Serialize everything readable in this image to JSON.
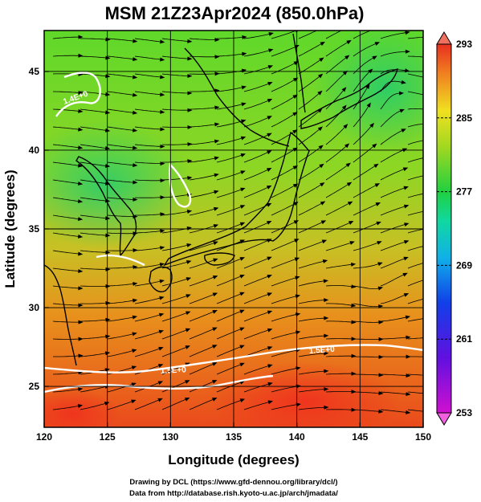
{
  "title": "MSM 21Z23Apr2024 (850.0hPa)",
  "xlabel": "Longitude (degrees)",
  "ylabel": "Latitude  (degrees)",
  "x_ticks": [
    "120",
    "125",
    "130",
    "135",
    "140",
    "145",
    "150"
  ],
  "y_ticks": [
    "25",
    "30",
    "35",
    "40",
    "45"
  ],
  "colorbar_ticks": [
    "293",
    "285",
    "277",
    "269",
    "261",
    "253"
  ],
  "credit_line1": "Drawing by DCL (https://www.gfd-dennou.org/library/dcl/)",
  "credit_line2": "Data from http://database.rish.kyoto-u.ac.jp/arch/jmadata/",
  "contour_labels": [
    "1.4E+0",
    "1.5E+0",
    "1.5E+0"
  ],
  "map": {
    "lon_range": [
      120,
      150
    ],
    "lat_range": [
      22.4,
      47.6
    ],
    "variable_range_K": [
      253,
      293
    ],
    "colors": {
      "warm": "#e8401c",
      "mid": "#7fd81e",
      "cool": "#1ec878",
      "contour": "#ffffff",
      "coast": "#000000"
    }
  }
}
